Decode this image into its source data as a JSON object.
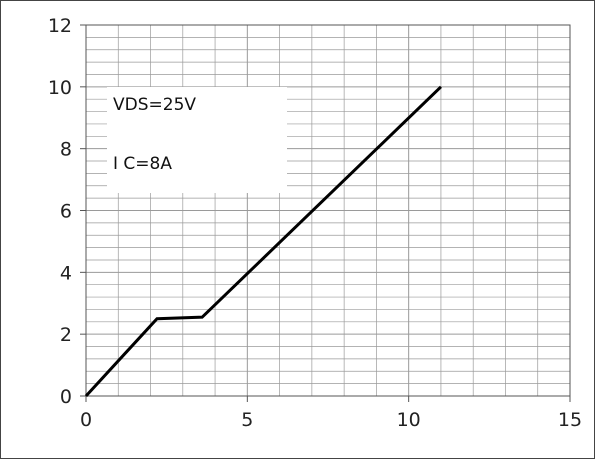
{
  "chart_data": {
    "type": "line",
    "title": "",
    "xlabel": "",
    "ylabel": "",
    "xlim": [
      0,
      15
    ],
    "ylim": [
      0,
      12
    ],
    "x_major_ticks": [
      0,
      5,
      10,
      15
    ],
    "y_major_ticks": [
      0,
      2,
      4,
      6,
      8,
      10,
      12
    ],
    "x_tick_labels": [
      "0",
      "5",
      "10",
      "15"
    ],
    "y_tick_labels": [
      "0",
      "2",
      "4",
      "6",
      "8",
      "10",
      "12"
    ],
    "grid": true,
    "minor_grid": {
      "x_step": 1,
      "y_step": 0.4
    },
    "legend": "none",
    "series": [
      {
        "color": "#000000",
        "x": [
          0,
          2.2,
          3.6,
          11
        ],
        "y": [
          0,
          2.5,
          2.55,
          10
        ]
      }
    ],
    "annotations": [
      "VDS=25V",
      "I C=8A"
    ],
    "colors": {
      "line": "#000000",
      "grid": "#9a9a9a",
      "axis": "#555555"
    }
  }
}
